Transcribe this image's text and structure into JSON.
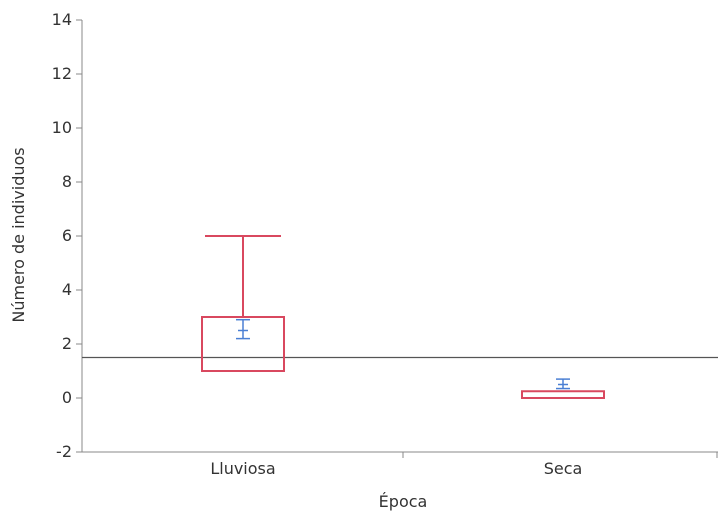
{
  "chart_data": {
    "type": "box",
    "xlabel": "Época",
    "ylabel": "Número de individuos",
    "ylim": [
      -2,
      14
    ],
    "yticks": [
      -2,
      0,
      2,
      4,
      6,
      8,
      10,
      12,
      14
    ],
    "categories": [
      "Lluviosa",
      "Seca"
    ],
    "boxes": [
      {
        "category": "Lluviosa",
        "min": 1,
        "q1": 1,
        "median": 1,
        "q3": 3,
        "max": 6
      },
      {
        "category": "Seca",
        "min": 0,
        "q1": 0,
        "median": 0,
        "q3": 0.25,
        "max": 0.25
      }
    ],
    "means": [
      {
        "category": "Lluviosa",
        "mean": 2.5,
        "lower": 2.2,
        "upper": 2.9
      },
      {
        "category": "Seca",
        "mean": 0.5,
        "lower": 0.35,
        "upper": 0.7
      }
    ],
    "reference_line": 1.5,
    "grid": false,
    "colors": {
      "box": "#d9485f",
      "mean": "#4a7fd4",
      "reference": "#555555",
      "axis": "#888888"
    }
  }
}
